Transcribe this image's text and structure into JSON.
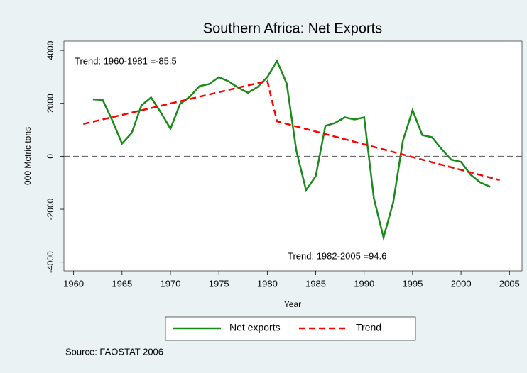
{
  "chart_data": {
    "type": "line",
    "title": "Southern Africa: Net Exports",
    "x_label": "Year",
    "y_label": "000 Metric tons",
    "source": "Source:  FAOSTAT 2006",
    "annotations": [
      "Trend: 1960-1981 =-85.5",
      "Trend: 1982-2005 =94.6"
    ],
    "xlim": [
      1959,
      2006.3
    ],
    "ylim": [
      -4330,
      4350
    ],
    "xticks": [
      1960,
      1965,
      1970,
      1975,
      1980,
      1985,
      1990,
      1995,
      2000,
      2005
    ],
    "yticks": [
      -4000,
      -2000,
      0,
      2000,
      4000
    ],
    "reference_line": 0,
    "grid": false,
    "legend": "bottom",
    "series": [
      {
        "name": "Net exports",
        "color": "#1a8a1a",
        "dash": false,
        "x": [
          1962,
          1963,
          1964,
          1965,
          1966,
          1967,
          1968,
          1969,
          1970,
          1971,
          1972,
          1973,
          1974,
          1975,
          1976,
          1977,
          1978,
          1979,
          1980,
          1981,
          1982,
          1983,
          1984,
          1985,
          1986,
          1987,
          1988,
          1989,
          1990,
          1991,
          1992,
          1993,
          1994,
          1995,
          1996,
          1997,
          1998,
          1999,
          2000,
          2001,
          2002,
          2003
        ],
        "values": [
          2150,
          2130,
          1350,
          480,
          880,
          1920,
          2220,
          1660,
          1040,
          1980,
          2250,
          2650,
          2730,
          2990,
          2830,
          2590,
          2400,
          2620,
          2990,
          3600,
          2750,
          210,
          -1280,
          -750,
          1150,
          1260,
          1470,
          1390,
          1470,
          -1580,
          -3070,
          -1740,
          590,
          1740,
          800,
          720,
          270,
          -130,
          -210,
          -700,
          -990,
          -1150
        ]
      },
      {
        "name": "Trend",
        "color": "#ff0000",
        "dash": true,
        "x": [
          1961,
          1980,
          1981,
          2004
        ],
        "values": [
          1220,
          2850,
          1320,
          -900
        ]
      }
    ]
  }
}
